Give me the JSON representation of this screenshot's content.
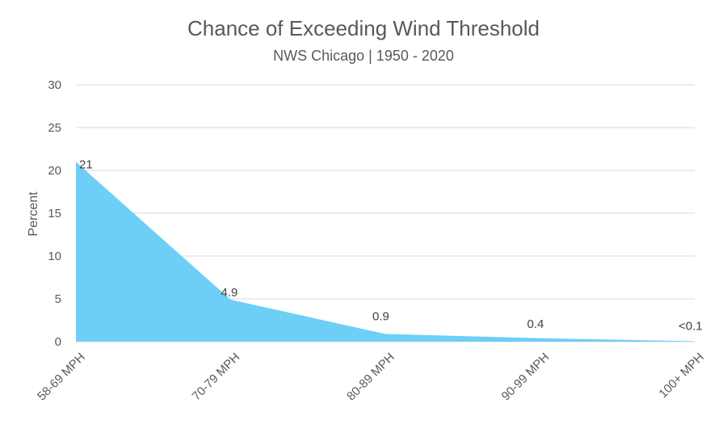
{
  "chart_data": {
    "type": "area",
    "title": "Chance of Exceeding Wind Threshold",
    "subtitle": "NWS Chicago | 1950 - 2020",
    "xlabel": "",
    "ylabel": "Percent",
    "categories": [
      "58-69 MPH",
      "70-79 MPH",
      "80-89 MPH",
      "90-99 MPH",
      "100+ MPH"
    ],
    "series": [
      {
        "values": [
          21,
          4.9,
          0.9,
          0.4,
          0.05
        ],
        "data_labels": [
          "21",
          "4.9",
          "0.9",
          "0.4",
          "<0.1"
        ],
        "color": "#6dcff6"
      }
    ],
    "ylim": [
      0,
      30
    ],
    "yticks": [
      "0",
      "5",
      "10",
      "15",
      "20",
      "25",
      "30"
    ],
    "grid": true,
    "legend": "none"
  }
}
